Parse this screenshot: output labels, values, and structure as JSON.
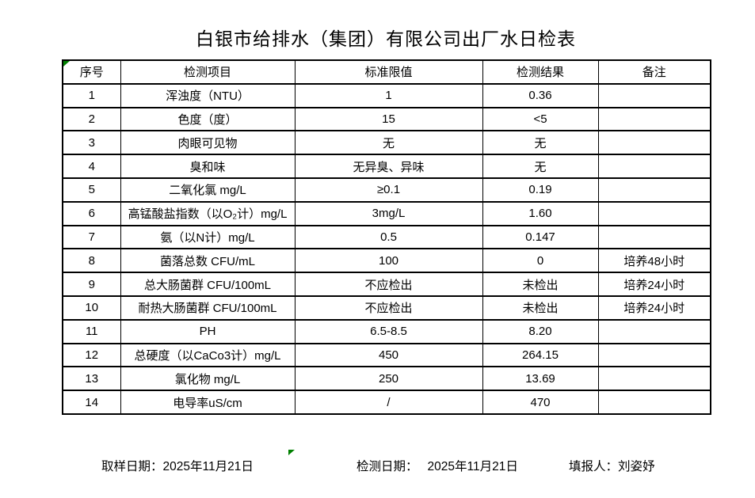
{
  "title": "白银市给排水（集团）有限公司出厂水日检表",
  "table": {
    "headers": [
      "序号",
      "检测项目",
      "标准限值",
      "检测结果",
      "备注"
    ],
    "rows": [
      [
        "1",
        "浑浊度（NTU）",
        "1",
        "0.36",
        ""
      ],
      [
        "2",
        "色度（度）",
        "15",
        "<5",
        ""
      ],
      [
        "3",
        "肉眼可见物",
        "无",
        "无",
        ""
      ],
      [
        "4",
        "臭和味",
        "无异臭、异味",
        "无",
        ""
      ],
      [
        "5",
        "二氧化氯 mg/L",
        "≥0.1",
        "0.19",
        ""
      ],
      [
        "6",
        "高锰酸盐指数（以O₂计）mg/L",
        "3mg/L",
        "1.60",
        ""
      ],
      [
        "7",
        "氨（以N计）mg/L",
        "0.5",
        "0.147",
        ""
      ],
      [
        "8",
        "菌落总数 CFU/mL",
        "100",
        "0",
        "培养48小时"
      ],
      [
        "9",
        "总大肠菌群 CFU/100mL",
        "不应检出",
        "未检出",
        "培养24小时"
      ],
      [
        "10",
        "耐热大肠菌群 CFU/100mL",
        "不应检出",
        "未检出",
        "培养24小时"
      ],
      [
        "11",
        "PH",
        "6.5-8.5",
        "8.20",
        ""
      ],
      [
        "12",
        "总硬度（以CaCo3计）mg/L",
        "450",
        "264.15",
        ""
      ],
      [
        "13",
        "氯化物 mg/L",
        "250",
        "13.69",
        ""
      ],
      [
        "14",
        "电导率uS/cm",
        "/",
        "470",
        ""
      ]
    ]
  },
  "footer": {
    "sampling_date_label": "取样日期：",
    "sampling_date": "2025年11月21日",
    "test_date_label": "检测日期：",
    "test_date": "2025年11月21日",
    "reporter_label": "填报人：",
    "reporter": "刘姿妤"
  },
  "marks": {
    "comment_indicator_color": "#008000"
  }
}
